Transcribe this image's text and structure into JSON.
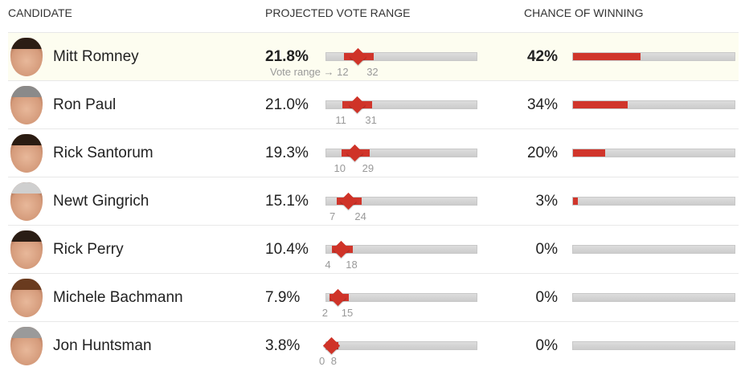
{
  "headers": {
    "candidate": "CANDIDATE",
    "range": "PROJECTED VOTE RANGE",
    "chance": "CHANCE OF WINNING"
  },
  "vote_range_label": "Vote range →",
  "accent": "#d0352b",
  "candidates": [
    {
      "name": "Mitt Romney",
      "pct": "21.8%",
      "value": 21.8,
      "lo": 12,
      "hi": 32,
      "chance": "42%",
      "chance_value": 42
    },
    {
      "name": "Ron Paul",
      "pct": "21.0%",
      "value": 21.0,
      "lo": 11,
      "hi": 31,
      "chance": "34%",
      "chance_value": 34
    },
    {
      "name": "Rick Santorum",
      "pct": "19.3%",
      "value": 19.3,
      "lo": 10,
      "hi": 29,
      "chance": "20%",
      "chance_value": 20
    },
    {
      "name": "Newt Gingrich",
      "pct": "15.1%",
      "value": 15.1,
      "lo": 7,
      "hi": 24,
      "chance": "3%",
      "chance_value": 3
    },
    {
      "name": "Rick Perry",
      "pct": "10.4%",
      "value": 10.4,
      "lo": 4,
      "hi": 18,
      "chance": "0%",
      "chance_value": 0
    },
    {
      "name": "Michele Bachmann",
      "pct": "7.9%",
      "value": 7.9,
      "lo": 2,
      "hi": 15,
      "chance": "0%",
      "chance_value": 0
    },
    {
      "name": "Jon Huntsman",
      "pct": "3.8%",
      "value": 3.8,
      "lo": 0,
      "hi": 8,
      "chance": "0%",
      "chance_value": 0
    }
  ]
}
